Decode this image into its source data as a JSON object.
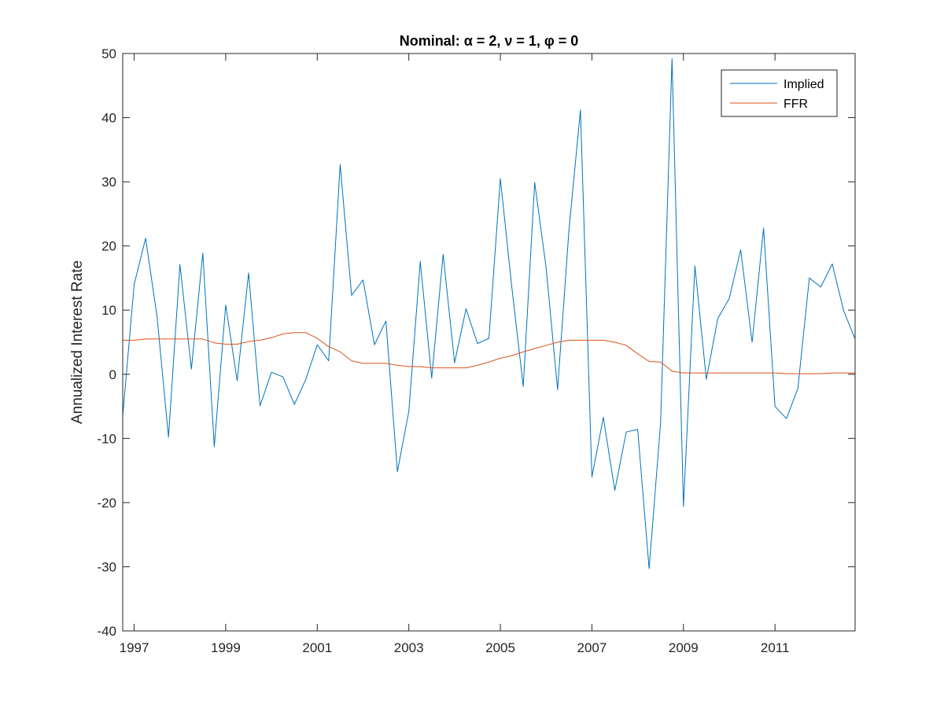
{
  "chart_data": {
    "type": "line",
    "title": "Nominal: α = 2, ν = 1, φ = 0",
    "xlabel": "",
    "ylabel": "Annualized Interest Rate",
    "xlim": [
      1996.75,
      2012.75
    ],
    "ylim": [
      -40,
      50
    ],
    "x_ticks": [
      1997,
      1999,
      2001,
      2003,
      2005,
      2007,
      2009,
      2011
    ],
    "y_ticks": [
      -40,
      -30,
      -20,
      -10,
      0,
      10,
      20,
      30,
      40,
      50
    ],
    "legend_position": "top-right",
    "grid": false,
    "series": [
      {
        "name": "Implied",
        "color": "#0072BD",
        "x": [
          1996.75,
          1997.0,
          1997.25,
          1997.5,
          1997.75,
          1998.0,
          1998.25,
          1998.5,
          1998.75,
          1999.0,
          1999.25,
          1999.5,
          1999.75,
          2000.0,
          2000.25,
          2000.5,
          2000.75,
          2001.0,
          2001.25,
          2001.5,
          2001.75,
          2002.0,
          2002.25,
          2002.5,
          2002.75,
          2003.0,
          2003.25,
          2003.5,
          2003.75,
          2004.0,
          2004.25,
          2004.5,
          2004.75,
          2005.0,
          2005.25,
          2005.5,
          2005.75,
          2006.0,
          2006.25,
          2006.5,
          2006.75,
          2007.0,
          2007.25,
          2007.5,
          2007.75,
          2008.0,
          2008.25,
          2008.5,
          2008.75,
          2009.0,
          2009.25,
          2009.5,
          2009.75,
          2010.0,
          2010.25,
          2010.5,
          2010.75,
          2011.0,
          2011.25,
          2011.5,
          2011.75,
          2012.0,
          2012.25,
          2012.5,
          2012.75
        ],
        "values": [
          -6.5,
          14.0,
          21.2,
          9.0,
          -9.8,
          17.1,
          0.8,
          18.9,
          -11.3,
          10.8,
          -1.0,
          15.8,
          -4.9,
          0.3,
          -0.4,
          -4.7,
          -0.8,
          4.6,
          2.1,
          32.7,
          12.3,
          14.7,
          4.6,
          8.3,
          -15.2,
          -5.8,
          17.6,
          -0.6,
          18.7,
          1.8,
          10.2,
          4.8,
          5.6,
          30.5,
          13.6,
          -1.9,
          29.9,
          16.6,
          -2.4,
          22.6,
          41.2,
          -16.0,
          -6.7,
          -18.1,
          -9.0,
          -8.6,
          -30.3,
          -7.6,
          49.2,
          -20.6,
          16.9,
          -0.8,
          8.7,
          11.8,
          19.4,
          5.0,
          22.8,
          -5.0,
          -6.9,
          -2.2,
          15.0,
          13.6,
          17.2,
          9.9,
          5.5
        ]
      },
      {
        "name": "FFR",
        "color": "#D95319",
        "x": [
          1996.75,
          1997.0,
          1997.25,
          1997.5,
          1997.75,
          1998.0,
          1998.25,
          1998.5,
          1998.75,
          1999.0,
          1999.25,
          1999.5,
          1999.75,
          2000.0,
          2000.25,
          2000.5,
          2000.75,
          2001.0,
          2001.25,
          2001.5,
          2001.75,
          2002.0,
          2002.25,
          2002.5,
          2002.75,
          2003.0,
          2003.25,
          2003.5,
          2003.75,
          2004.0,
          2004.25,
          2004.5,
          2004.75,
          2005.0,
          2005.25,
          2005.5,
          2005.75,
          2006.0,
          2006.25,
          2006.5,
          2006.75,
          2007.0,
          2007.25,
          2007.5,
          2007.75,
          2008.0,
          2008.25,
          2008.5,
          2008.75,
          2009.0,
          2009.25,
          2009.5,
          2009.75,
          2010.0,
          2010.25,
          2010.5,
          2010.75,
          2011.0,
          2011.25,
          2011.5,
          2011.75,
          2012.0,
          2012.25,
          2012.5,
          2012.75
        ],
        "values": [
          5.3,
          5.3,
          5.5,
          5.5,
          5.5,
          5.5,
          5.5,
          5.5,
          4.9,
          4.7,
          4.7,
          5.1,
          5.3,
          5.7,
          6.3,
          6.5,
          6.5,
          5.6,
          4.3,
          3.5,
          2.1,
          1.7,
          1.7,
          1.7,
          1.4,
          1.2,
          1.2,
          1.0,
          1.0,
          1.0,
          1.0,
          1.4,
          1.9,
          2.5,
          2.9,
          3.5,
          4.0,
          4.5,
          5.0,
          5.3,
          5.3,
          5.3,
          5.3,
          5.0,
          4.5,
          3.2,
          2.0,
          1.9,
          0.5,
          0.2,
          0.2,
          0.2,
          0.2,
          0.2,
          0.2,
          0.2,
          0.2,
          0.2,
          0.1,
          0.1,
          0.1,
          0.1,
          0.2,
          0.2,
          0.2
        ]
      }
    ]
  }
}
